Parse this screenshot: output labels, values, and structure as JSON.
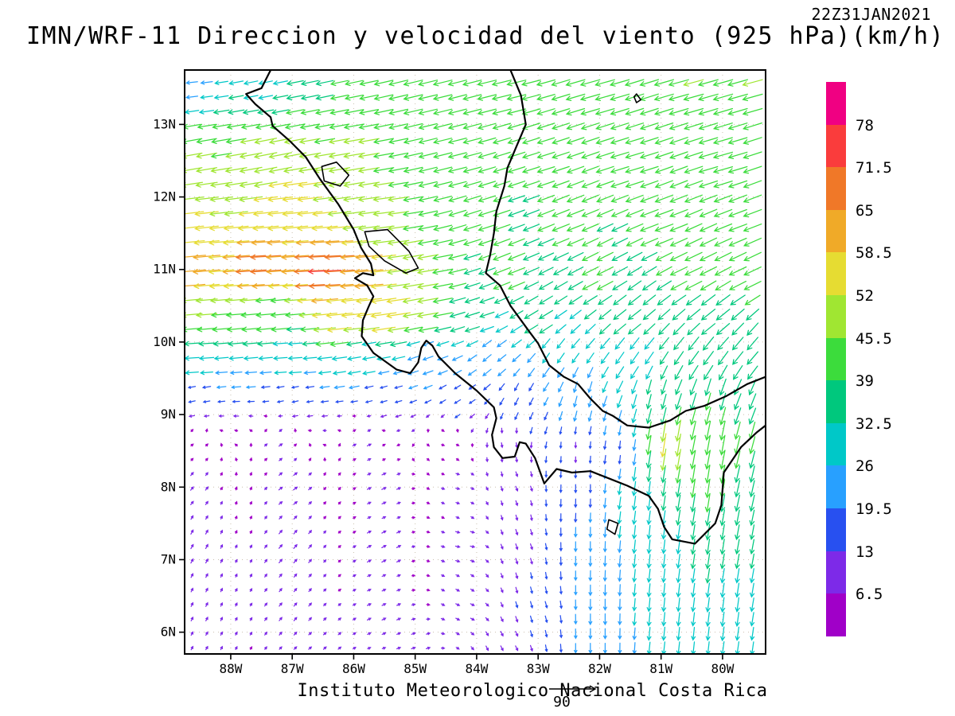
{
  "header": {
    "title": "IMN/WRF-11 Direccion y velocidad del viento (925 hPa)(km/h)",
    "timestamp": "22Z31JAN2021"
  },
  "footer": {
    "credit": "Instituto Meteorologico Nacional Costa Rica",
    "reference_label": "90"
  },
  "axes": {
    "lat_ticks": [
      "13N",
      "12N",
      "11N",
      "10N",
      "9N",
      "8N",
      "7N",
      "6N"
    ],
    "lon_ticks": [
      "88W",
      "87W",
      "86W",
      "85W",
      "84W",
      "83W",
      "82W",
      "81W",
      "80W"
    ]
  },
  "chart_data": {
    "type": "vector_field",
    "title": "IMN/WRF-11 Direccion y velocidad del viento (925 hPa)(km/h)",
    "timestamp": "22Z31JAN2021",
    "units": "km/h",
    "lon_w_range": [
      88.75,
      79.3
    ],
    "lat_range": [
      5.7,
      13.75
    ],
    "lat_tick_values": [
      13,
      12,
      11,
      10,
      9,
      8,
      7,
      6
    ],
    "lon_tick_values": [
      88,
      87,
      86,
      85,
      84,
      83,
      82,
      81,
      80
    ],
    "reference_speed": 90,
    "speed_levels": [
      6.5,
      13,
      19.5,
      26,
      32.5,
      39,
      45.5,
      52,
      58.5,
      65,
      71.5,
      78
    ],
    "level_colors_bottom_to_top": [
      "#a000c8",
      "#7d2ae8",
      "#2850f0",
      "#28a0ff",
      "#00c8c8",
      "#00c87d",
      "#3cdc3c",
      "#a0e632",
      "#e6dc32",
      "#f0aa28",
      "#f07828",
      "#fa3c3c",
      "#f00082"
    ],
    "grid_step_lon_deg": 0.24,
    "grid_step_lat_deg": 0.2,
    "wind_samples_lonw_lat_u_v": [
      [
        88.6,
        13.6,
        -25,
        -3
      ],
      [
        87.5,
        13.6,
        -30,
        -6
      ],
      [
        86.5,
        13.6,
        -38,
        -8
      ],
      [
        85.0,
        13.6,
        -42,
        -10
      ],
      [
        83.5,
        13.6,
        -42,
        -10
      ],
      [
        82.0,
        13.6,
        -43,
        -12
      ],
      [
        80.5,
        13.6,
        -44,
        -12
      ],
      [
        79.5,
        13.6,
        -44,
        -12
      ],
      [
        88.6,
        12.5,
        -45,
        -8
      ],
      [
        87.3,
        12.5,
        -50,
        -10
      ],
      [
        86.0,
        12.5,
        -46,
        -8
      ],
      [
        84.5,
        12.5,
        -40,
        -10
      ],
      [
        83.0,
        12.5,
        -38,
        -12
      ],
      [
        81.5,
        12.5,
        -40,
        -12
      ],
      [
        80.0,
        12.5,
        -42,
        -12
      ],
      [
        88.6,
        11.8,
        -52,
        -6
      ],
      [
        87.0,
        11.8,
        -56,
        -6
      ],
      [
        85.5,
        11.7,
        -46,
        -6
      ],
      [
        84.0,
        11.7,
        -38,
        -12
      ],
      [
        82.5,
        11.7,
        -38,
        -15
      ],
      [
        81.0,
        11.7,
        -40,
        -15
      ],
      [
        79.7,
        11.7,
        -40,
        -15
      ],
      [
        88.6,
        11.0,
        -62,
        -5
      ],
      [
        87.5,
        11.05,
        -68,
        -4
      ],
      [
        86.5,
        11.0,
        -73,
        -3
      ],
      [
        85.8,
        10.9,
        -63,
        -5
      ],
      [
        84.8,
        11.0,
        -46,
        -8
      ],
      [
        83.5,
        11.0,
        -38,
        -15
      ],
      [
        82.0,
        11.0,
        -36,
        -18
      ],
      [
        80.5,
        11.0,
        -38,
        -18
      ],
      [
        79.6,
        11.0,
        -38,
        -18
      ],
      [
        88.6,
        10.4,
        -46,
        -4
      ],
      [
        87.3,
        10.4,
        -42,
        -4
      ],
      [
        86.2,
        10.45,
        -58,
        -6
      ],
      [
        85.5,
        10.4,
        -56,
        -8
      ],
      [
        84.8,
        10.4,
        -46,
        -8
      ],
      [
        84.0,
        10.3,
        -32,
        -10
      ],
      [
        83.0,
        10.3,
        -30,
        -18
      ],
      [
        81.5,
        10.3,
        -28,
        -22
      ],
      [
        80.2,
        10.3,
        -30,
        -24
      ],
      [
        88.6,
        9.8,
        -32,
        -2
      ],
      [
        87.0,
        9.8,
        -30,
        -2
      ],
      [
        85.8,
        9.8,
        -28,
        -5
      ],
      [
        84.8,
        9.8,
        -22,
        -8
      ],
      [
        83.8,
        9.8,
        -18,
        -15
      ],
      [
        82.8,
        9.8,
        -15,
        -22
      ],
      [
        81.5,
        9.8,
        -18,
        -26
      ],
      [
        80.3,
        9.8,
        -22,
        -30
      ],
      [
        79.5,
        9.8,
        -24,
        -28
      ],
      [
        88.6,
        9.2,
        -14,
        -3
      ],
      [
        87.0,
        9.2,
        -13,
        -3
      ],
      [
        85.5,
        9.2,
        -14,
        -4
      ],
      [
        84.3,
        9.2,
        -13,
        -8
      ],
      [
        83.3,
        9.2,
        -8,
        -16
      ],
      [
        82.3,
        9.2,
        -6,
        -24
      ],
      [
        81.2,
        9.2,
        -8,
        -32
      ],
      [
        80.2,
        9.2,
        -10,
        -38
      ],
      [
        79.5,
        9.2,
        -14,
        -35
      ],
      [
        88.6,
        8.6,
        5,
        4
      ],
      [
        87.2,
        8.6,
        7,
        5
      ],
      [
        85.8,
        8.6,
        8,
        4
      ],
      [
        84.5,
        8.6,
        6,
        -2
      ],
      [
        83.5,
        8.6,
        2,
        -10
      ],
      [
        82.4,
        8.5,
        0,
        -12
      ],
      [
        81.7,
        8.5,
        -2,
        -18
      ],
      [
        80.9,
        8.6,
        -8,
        -52
      ],
      [
        80.1,
        8.6,
        -8,
        -44
      ],
      [
        79.5,
        8.6,
        -10,
        -38
      ],
      [
        88.6,
        8.0,
        6,
        7
      ],
      [
        87.0,
        8.0,
        8,
        6
      ],
      [
        85.5,
        8.0,
        9,
        4
      ],
      [
        84.3,
        8.0,
        8,
        -2
      ],
      [
        83.3,
        8.0,
        4,
        -10
      ],
      [
        82.3,
        8.0,
        0,
        -18
      ],
      [
        81.3,
        8.0,
        -4,
        -32
      ],
      [
        80.3,
        8.0,
        -6,
        -40
      ],
      [
        79.5,
        8.0,
        -8,
        -36
      ],
      [
        88.6,
        7.2,
        5,
        9
      ],
      [
        87.0,
        7.2,
        7,
        8
      ],
      [
        85.5,
        7.2,
        9,
        5
      ],
      [
        84.2,
        7.2,
        9,
        -2
      ],
      [
        83.2,
        7.2,
        4,
        -12
      ],
      [
        82.2,
        7.2,
        0,
        -22
      ],
      [
        81.2,
        7.2,
        -3,
        -30
      ],
      [
        80.2,
        7.2,
        -5,
        -34
      ],
      [
        79.5,
        7.2,
        -6,
        -32
      ],
      [
        88.6,
        6.3,
        4,
        8
      ],
      [
        87.0,
        6.3,
        6,
        7
      ],
      [
        85.5,
        6.3,
        8,
        4
      ],
      [
        84.2,
        6.3,
        8,
        -4
      ],
      [
        83.0,
        6.3,
        4,
        -14
      ],
      [
        82.0,
        6.3,
        0,
        -24
      ],
      [
        81.0,
        6.3,
        -3,
        -30
      ],
      [
        80.0,
        6.3,
        -4,
        -32
      ],
      [
        79.4,
        6.3,
        -5,
        -30
      ],
      [
        88.6,
        5.8,
        4,
        7
      ],
      [
        86.5,
        5.8,
        6,
        5
      ],
      [
        85.0,
        5.8,
        8,
        3
      ],
      [
        83.5,
        5.8,
        5,
        -10
      ],
      [
        82.0,
        5.8,
        0,
        -22
      ],
      [
        80.5,
        5.8,
        -3,
        -28
      ],
      [
        79.5,
        5.8,
        -4,
        -28
      ]
    ],
    "coastlines": [
      [
        [
          87.35,
          13.75
        ],
        [
          87.5,
          13.5
        ],
        [
          87.75,
          13.42
        ],
        [
          87.6,
          13.28
        ],
        [
          87.35,
          13.1
        ],
        [
          87.32,
          12.98
        ],
        [
          87.05,
          12.78
        ],
        [
          86.78,
          12.55
        ],
        [
          86.55,
          12.25
        ],
        [
          86.25,
          11.9
        ],
        [
          86.0,
          11.55
        ],
        [
          85.88,
          11.3
        ],
        [
          85.72,
          11.08
        ],
        [
          85.68,
          10.92
        ],
        [
          85.85,
          10.95
        ],
        [
          85.98,
          10.88
        ],
        [
          85.78,
          10.78
        ],
        [
          85.68,
          10.63
        ],
        [
          85.75,
          10.5
        ],
        [
          85.85,
          10.3
        ],
        [
          85.87,
          10.08
        ],
        [
          85.68,
          9.85
        ],
        [
          85.3,
          9.62
        ],
        [
          85.08,
          9.57
        ],
        [
          84.95,
          9.72
        ],
        [
          84.9,
          9.92
        ],
        [
          84.82,
          10.02
        ],
        [
          84.72,
          9.95
        ],
        [
          84.62,
          9.8
        ],
        [
          84.35,
          9.57
        ],
        [
          84.0,
          9.33
        ],
        [
          83.72,
          9.1
        ],
        [
          83.68,
          8.95
        ],
        [
          83.75,
          8.72
        ],
        [
          83.72,
          8.55
        ],
        [
          83.58,
          8.4
        ],
        [
          83.38,
          8.42
        ],
        [
          83.3,
          8.62
        ],
        [
          83.2,
          8.6
        ],
        [
          83.05,
          8.4
        ],
        [
          82.9,
          8.05
        ],
        [
          82.7,
          8.25
        ],
        [
          82.45,
          8.2
        ],
        [
          82.15,
          8.22
        ],
        [
          81.85,
          8.12
        ],
        [
          81.55,
          8.02
        ],
        [
          81.2,
          7.88
        ],
        [
          81.05,
          7.7
        ],
        [
          80.95,
          7.45
        ],
        [
          80.82,
          7.28
        ],
        [
          80.45,
          7.22
        ],
        [
          80.12,
          7.5
        ],
        [
          80.02,
          7.75
        ],
        [
          79.98,
          8.2
        ],
        [
          79.7,
          8.55
        ],
        [
          79.45,
          8.75
        ],
        [
          79.3,
          8.85
        ]
      ],
      [
        [
          83.45,
          13.75
        ],
        [
          83.28,
          13.4
        ],
        [
          83.2,
          13.0
        ],
        [
          83.35,
          12.7
        ],
        [
          83.5,
          12.4
        ],
        [
          83.55,
          12.15
        ],
        [
          83.68,
          11.8
        ],
        [
          83.72,
          11.5
        ],
        [
          83.78,
          11.2
        ],
        [
          83.85,
          10.95
        ],
        [
          83.62,
          10.78
        ],
        [
          83.45,
          10.5
        ],
        [
          83.15,
          10.15
        ],
        [
          83.0,
          9.98
        ],
        [
          82.82,
          9.68
        ],
        [
          82.58,
          9.52
        ],
        [
          82.35,
          9.42
        ],
        [
          82.15,
          9.22
        ],
        [
          81.95,
          9.05
        ],
        [
          81.78,
          8.98
        ],
        [
          81.55,
          8.85
        ],
        [
          81.2,
          8.82
        ],
        [
          80.85,
          8.92
        ],
        [
          80.6,
          9.05
        ],
        [
          80.3,
          9.12
        ],
        [
          79.95,
          9.25
        ],
        [
          79.6,
          9.42
        ],
        [
          79.3,
          9.52
        ]
      ]
    ],
    "lakes": [
      [
        [
          85.82,
          11.52
        ],
        [
          85.45,
          11.55
        ],
        [
          85.1,
          11.25
        ],
        [
          84.95,
          11.02
        ],
        [
          85.15,
          10.95
        ],
        [
          85.5,
          11.12
        ],
        [
          85.75,
          11.32
        ],
        [
          85.82,
          11.52
        ]
      ],
      [
        [
          86.52,
          12.42
        ],
        [
          86.28,
          12.48
        ],
        [
          86.08,
          12.3
        ],
        [
          86.22,
          12.15
        ],
        [
          86.48,
          12.22
        ],
        [
          86.52,
          12.42
        ]
      ],
      [
        [
          81.85,
          7.55
        ],
        [
          81.7,
          7.5
        ],
        [
          81.75,
          7.35
        ],
        [
          81.88,
          7.42
        ],
        [
          81.85,
          7.55
        ]
      ],
      [
        [
          81.4,
          13.42
        ],
        [
          81.33,
          13.34
        ],
        [
          81.4,
          13.3
        ],
        [
          81.44,
          13.38
        ],
        [
          81.4,
          13.42
        ]
      ]
    ]
  }
}
